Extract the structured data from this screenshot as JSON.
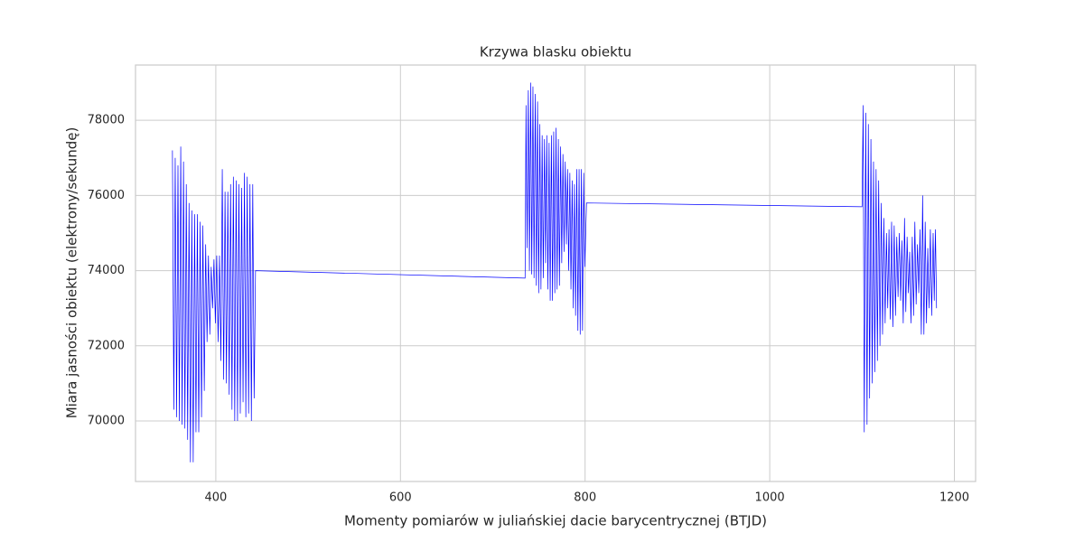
{
  "chart_data": {
    "type": "line",
    "title": "Krzywa blasku obiektu",
    "x_label": "Momenty pomiarów w juliańskiej dacie barycentrycznej (BTJD)",
    "y_label": "Miara jasności obiektu (elektrony/sekundę)",
    "color": "#0000ff",
    "grid": true,
    "xlim": [
      313,
      1223
    ],
    "ylim": [
      68390,
      79470
    ],
    "xticks": [
      400,
      600,
      800,
      1000,
      1200
    ],
    "yticks": [
      70000,
      72000,
      74000,
      76000,
      78000
    ],
    "x": [
      353,
      354.5,
      356,
      357.5,
      359,
      360.5,
      362,
      363.5,
      365,
      366.5,
      368,
      369.5,
      371,
      372.5,
      374,
      375.5,
      377,
      378.5,
      380,
      381.5,
      383,
      384.5,
      386,
      387.5,
      389,
      390.5,
      392,
      393.5,
      395,
      396.5,
      398,
      399.5,
      401,
      402.5,
      404,
      405.5,
      407,
      408.5,
      410,
      411.5,
      413,
      414.5,
      416,
      417.5,
      419,
      420.5,
      422,
      423.5,
      425,
      426.5,
      428,
      429.5,
      431,
      432.5,
      434,
      435.5,
      437,
      438.5,
      440,
      441.5,
      443,
      735,
      736,
      737.2,
      738.5,
      739.7,
      741,
      742.2,
      743.5,
      744.7,
      746,
      747.2,
      748.5,
      749.7,
      751,
      752.2,
      753.5,
      754.7,
      756,
      757.2,
      758.5,
      759.7,
      761,
      762.2,
      763.5,
      764.7,
      766,
      767.2,
      768.5,
      769.7,
      771,
      772.2,
      773.5,
      774.7,
      776,
      777.2,
      778.5,
      779.7,
      781,
      782.2,
      783.5,
      784.7,
      786,
      787.2,
      788.5,
      789.7,
      791,
      792.2,
      793.5,
      794.7,
      796,
      797.2,
      798.5,
      799.7,
      801.5,
      1100,
      1101.2,
      1102.4,
      1104,
      1105.4,
      1106.8,
      1108.2,
      1109.6,
      1111,
      1112.4,
      1113.8,
      1115.2,
      1116.6,
      1118,
      1119.4,
      1120.8,
      1122.2,
      1123.6,
      1125,
      1126.4,
      1127.8,
      1129.2,
      1130.6,
      1132,
      1133.4,
      1134.8,
      1136.2,
      1137.6,
      1139,
      1140.4,
      1141.8,
      1143.2,
      1144.6,
      1146,
      1147.4,
      1148.8,
      1150.2,
      1151.6,
      1153,
      1154.4,
      1155.8,
      1157.2,
      1158.6,
      1160,
      1161.4,
      1162.8,
      1164.2,
      1165.6,
      1167,
      1168.4,
      1169.8,
      1171.2,
      1172.6,
      1174,
      1175.4,
      1177,
      1178.2,
      1179.5,
      1180.7
    ],
    "values": [
      77200,
      70300,
      77000,
      70100,
      76800,
      70000,
      77300,
      69900,
      76900,
      69800,
      76300,
      69500,
      75800,
      68900,
      75600,
      68900,
      75500,
      69700,
      75500,
      69700,
      75300,
      70100,
      75200,
      70800,
      74700,
      72100,
      74400,
      72300,
      74100,
      73000,
      74300,
      72600,
      74400,
      72100,
      74400,
      71600,
      76700,
      71100,
      76100,
      71000,
      76100,
      70700,
      76300,
      70300,
      76500,
      70000,
      76400,
      70000,
      76300,
      70200,
      76200,
      70500,
      76600,
      70100,
      76500,
      70200,
      76300,
      70000,
      76300,
      70600,
      74000,
      73800,
      78400,
      74600,
      78800,
      74000,
      79000,
      73900,
      78900,
      73800,
      78700,
      73600,
      78500,
      73400,
      77900,
      73500,
      77600,
      73800,
      77500,
      74200,
      77600,
      73500,
      77400,
      73200,
      77600,
      73200,
      77700,
      73400,
      77800,
      73500,
      77500,
      73600,
      77300,
      74200,
      77100,
      74500,
      76900,
      74700,
      76700,
      74000,
      76600,
      73500,
      76400,
      73000,
      76300,
      72800,
      76700,
      72400,
      76700,
      72300,
      76700,
      72400,
      76600,
      74100,
      75800,
      75700,
      78400,
      69700,
      78200,
      69900,
      77900,
      70600,
      77500,
      71000,
      76900,
      71300,
      76700,
      71600,
      76400,
      72000,
      75800,
      72300,
      75400,
      72600,
      75000,
      73000,
      75100,
      72700,
      75300,
      72500,
      75200,
      72800,
      74900,
      73300,
      75000,
      73200,
      74800,
      72600,
      75400,
      72900,
      74900,
      73400,
      74500,
      72600,
      74900,
      72800,
      75300,
      73100,
      74700,
      73400,
      75100,
      72300,
      76000,
      72300,
      75300,
      72600,
      74600,
      73000,
      75100,
      72800,
      75000,
      73200,
      75100,
      73000
    ]
  }
}
